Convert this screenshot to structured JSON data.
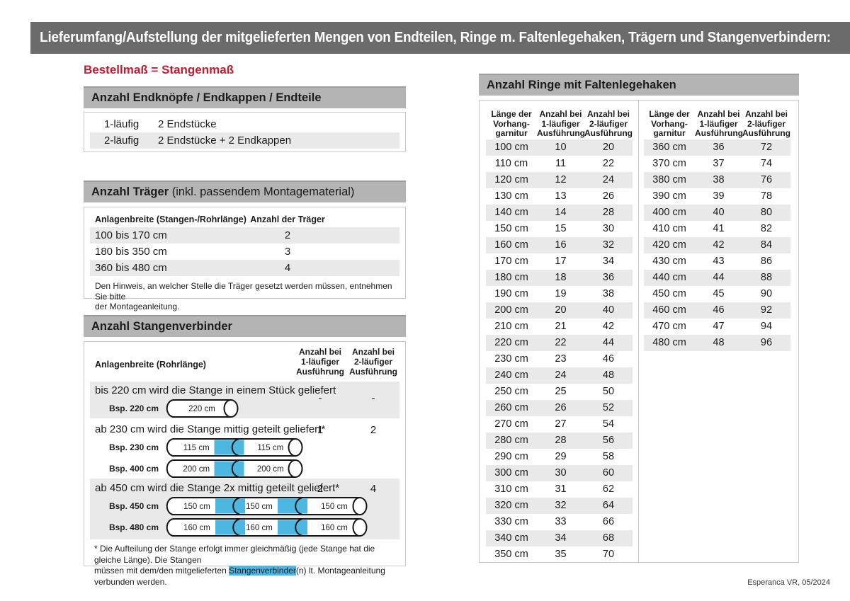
{
  "page": {
    "title": "Lieferumfang/Aufstellung der mitgelieferten Mengen von Endteilen, Ringe m. Faltenlegehaken, Trägern und Stangenverbindern:",
    "subtitle": "Bestellmaß = Stangenmaß",
    "footer": "Esperanca VR, 05/2024"
  },
  "colors": {
    "accent_red": "#c41b2e",
    "connector_blue": "#4cb8e2",
    "section_bar_gray": "#b4b4b4",
    "title_bar_gray": "#6b6b6b",
    "row_shade_gray": "#e9e9e9"
  },
  "endteile": {
    "header": "Anzahl Endknöpfe / Endkappen / Endteile",
    "rows": [
      {
        "label": "1-läufig",
        "value": "2 Endstücke"
      },
      {
        "label": "2-läufig",
        "value": "2 Endstücke + 2 Endkappen"
      }
    ]
  },
  "traeger": {
    "header_bold": "Anzahl Träger",
    "header_note": " (inkl. passendem Montagematerial)",
    "columns": [
      "Anlagenbreite (Stangen-/Rohrlänge)",
      "Anzahl der Träger"
    ],
    "rows": [
      {
        "range": "100 bis 170 cm",
        "count": "2"
      },
      {
        "range": "180 bis 350 cm",
        "count": "3"
      },
      {
        "range": "360 bis 480 cm",
        "count": "4"
      }
    ],
    "note": "Den Hinweis, an welcher Stelle die Träger gesetzt werden müssen, entnehmen Sie bitte\nder Montageanleitung."
  },
  "verbinder": {
    "header": "Anzahl Stangenverbinder",
    "col_label": "Anlagenbreite (Rohrlänge)",
    "col1": "Anzahl bei\n1-läufiger\nAusführung",
    "col2": "Anzahl bei\n2-läufiger\nAusführung",
    "rows": [
      {
        "text": "bis 220 cm wird die Stange in einem Stück geliefert",
        "count1": "-",
        "count2": "-",
        "rods": [
          {
            "label": "Bsp. 220 cm",
            "segments": [
              "220 cm"
            ]
          }
        ]
      },
      {
        "text": "ab 230 cm wird die Stange mittig geteilt geliefert*",
        "count1": "1",
        "count2": "2",
        "rods": [
          {
            "label": "Bsp. 230 cm",
            "segments": [
              "115 cm",
              "115 cm"
            ]
          },
          {
            "label": "Bsp. 400 cm",
            "segments": [
              "200 cm",
              "200 cm"
            ]
          }
        ]
      },
      {
        "text": "ab 450 cm wird die Stange 2x mittig geteilt geliefert*",
        "count1": "2",
        "count2": "4",
        "rods": [
          {
            "label": "Bsp. 450 cm",
            "segments": [
              "150 cm",
              "150 cm",
              "150 cm"
            ]
          },
          {
            "label": "Bsp. 480 cm",
            "segments": [
              "160 cm",
              "160 cm",
              "160 cm"
            ]
          }
        ]
      }
    ],
    "footnote_pre": "* Die Aufteilung der Stange erfolgt immer gleichmäßig (jede Stange hat die gleiche Länge). Die Stangen\nmüssen mit dem/den mitgelieferten ",
    "footnote_highlight": "Stangenverbinder",
    "footnote_post": "(n) lt. Montageanleitung verbunden werden."
  },
  "ringe": {
    "header": "Anzahl Ringe mit Faltenlegehaken",
    "columns": [
      "Länge der\nVorhang-\ngarnitur",
      "Anzahl bei\n1-läufiger\nAusführung",
      "Anzahl bei\n2-läufiger\nAusführung"
    ],
    "table_left": [
      [
        "100 cm",
        "10",
        "20"
      ],
      [
        "110 cm",
        "11",
        "22"
      ],
      [
        "120 cm",
        "12",
        "24"
      ],
      [
        "130 cm",
        "13",
        "26"
      ],
      [
        "140 cm",
        "14",
        "28"
      ],
      [
        "150 cm",
        "15",
        "30"
      ],
      [
        "160 cm",
        "16",
        "32"
      ],
      [
        "170 cm",
        "17",
        "34"
      ],
      [
        "180 cm",
        "18",
        "36"
      ],
      [
        "190 cm",
        "19",
        "38"
      ],
      [
        "200 cm",
        "20",
        "40"
      ],
      [
        "210 cm",
        "21",
        "42"
      ],
      [
        "220 cm",
        "22",
        "44"
      ],
      [
        "230 cm",
        "23",
        "46"
      ],
      [
        "240 cm",
        "24",
        "48"
      ],
      [
        "250 cm",
        "25",
        "50"
      ],
      [
        "260 cm",
        "26",
        "52"
      ],
      [
        "270 cm",
        "27",
        "54"
      ],
      [
        "280 cm",
        "28",
        "56"
      ],
      [
        "290 cm",
        "29",
        "58"
      ],
      [
        "300 cm",
        "30",
        "60"
      ],
      [
        "310 cm",
        "31",
        "62"
      ],
      [
        "320 cm",
        "32",
        "64"
      ],
      [
        "330 cm",
        "33",
        "66"
      ],
      [
        "340 cm",
        "34",
        "68"
      ],
      [
        "350 cm",
        "35",
        "70"
      ]
    ],
    "table_right": [
      [
        "360 cm",
        "36",
        "72"
      ],
      [
        "370 cm",
        "37",
        "74"
      ],
      [
        "380 cm",
        "38",
        "76"
      ],
      [
        "390 cm",
        "39",
        "78"
      ],
      [
        "400 cm",
        "40",
        "80"
      ],
      [
        "410 cm",
        "41",
        "82"
      ],
      [
        "420 cm",
        "42",
        "84"
      ],
      [
        "430 cm",
        "43",
        "86"
      ],
      [
        "440 cm",
        "44",
        "88"
      ],
      [
        "450 cm",
        "45",
        "90"
      ],
      [
        "460 cm",
        "46",
        "92"
      ],
      [
        "470 cm",
        "47",
        "94"
      ],
      [
        "480 cm",
        "48",
        "96"
      ]
    ]
  }
}
